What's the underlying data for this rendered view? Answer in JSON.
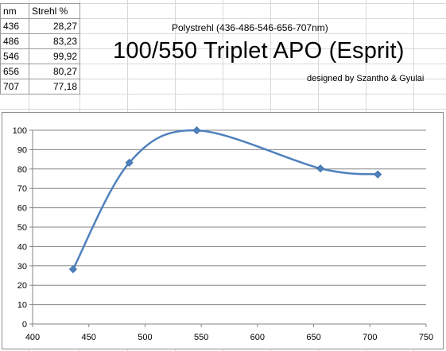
{
  "table": {
    "header": [
      "nm",
      "Strehl %"
    ],
    "rows": [
      [
        "436",
        "28,27"
      ],
      [
        "486",
        "83,23"
      ],
      [
        "546",
        "99,92"
      ],
      [
        "656",
        "80,27"
      ],
      [
        "707",
        "77,18"
      ]
    ]
  },
  "subtitle": "Polystrehl (436-486-546-656-707nm)",
  "title": "100/550 Triplet APO (Esprit)",
  "credit": "designed by Szantho & Gyulai",
  "colors": {
    "series": "#4f81bd",
    "grid": "#868686",
    "sheet_grid": "#d9d9d9"
  },
  "chart_data": {
    "type": "line",
    "smooth": true,
    "marker": "diamond",
    "x": [
      436,
      486,
      546,
      656,
      707
    ],
    "series": [
      {
        "values": [
          28.27,
          83.23,
          99.92,
          80.27,
          77.18
        ]
      }
    ],
    "xlim": [
      400,
      750
    ],
    "ylim": [
      0,
      100
    ],
    "x_ticks": [
      "400",
      "450",
      "500",
      "550",
      "600",
      "650",
      "700",
      "750"
    ],
    "y_ticks": [
      "0",
      "10",
      "20",
      "30",
      "40",
      "50",
      "60",
      "70",
      "80",
      "90",
      "100"
    ],
    "grid": "horizontal",
    "legend": "none",
    "xlabel": "",
    "ylabel": ""
  }
}
